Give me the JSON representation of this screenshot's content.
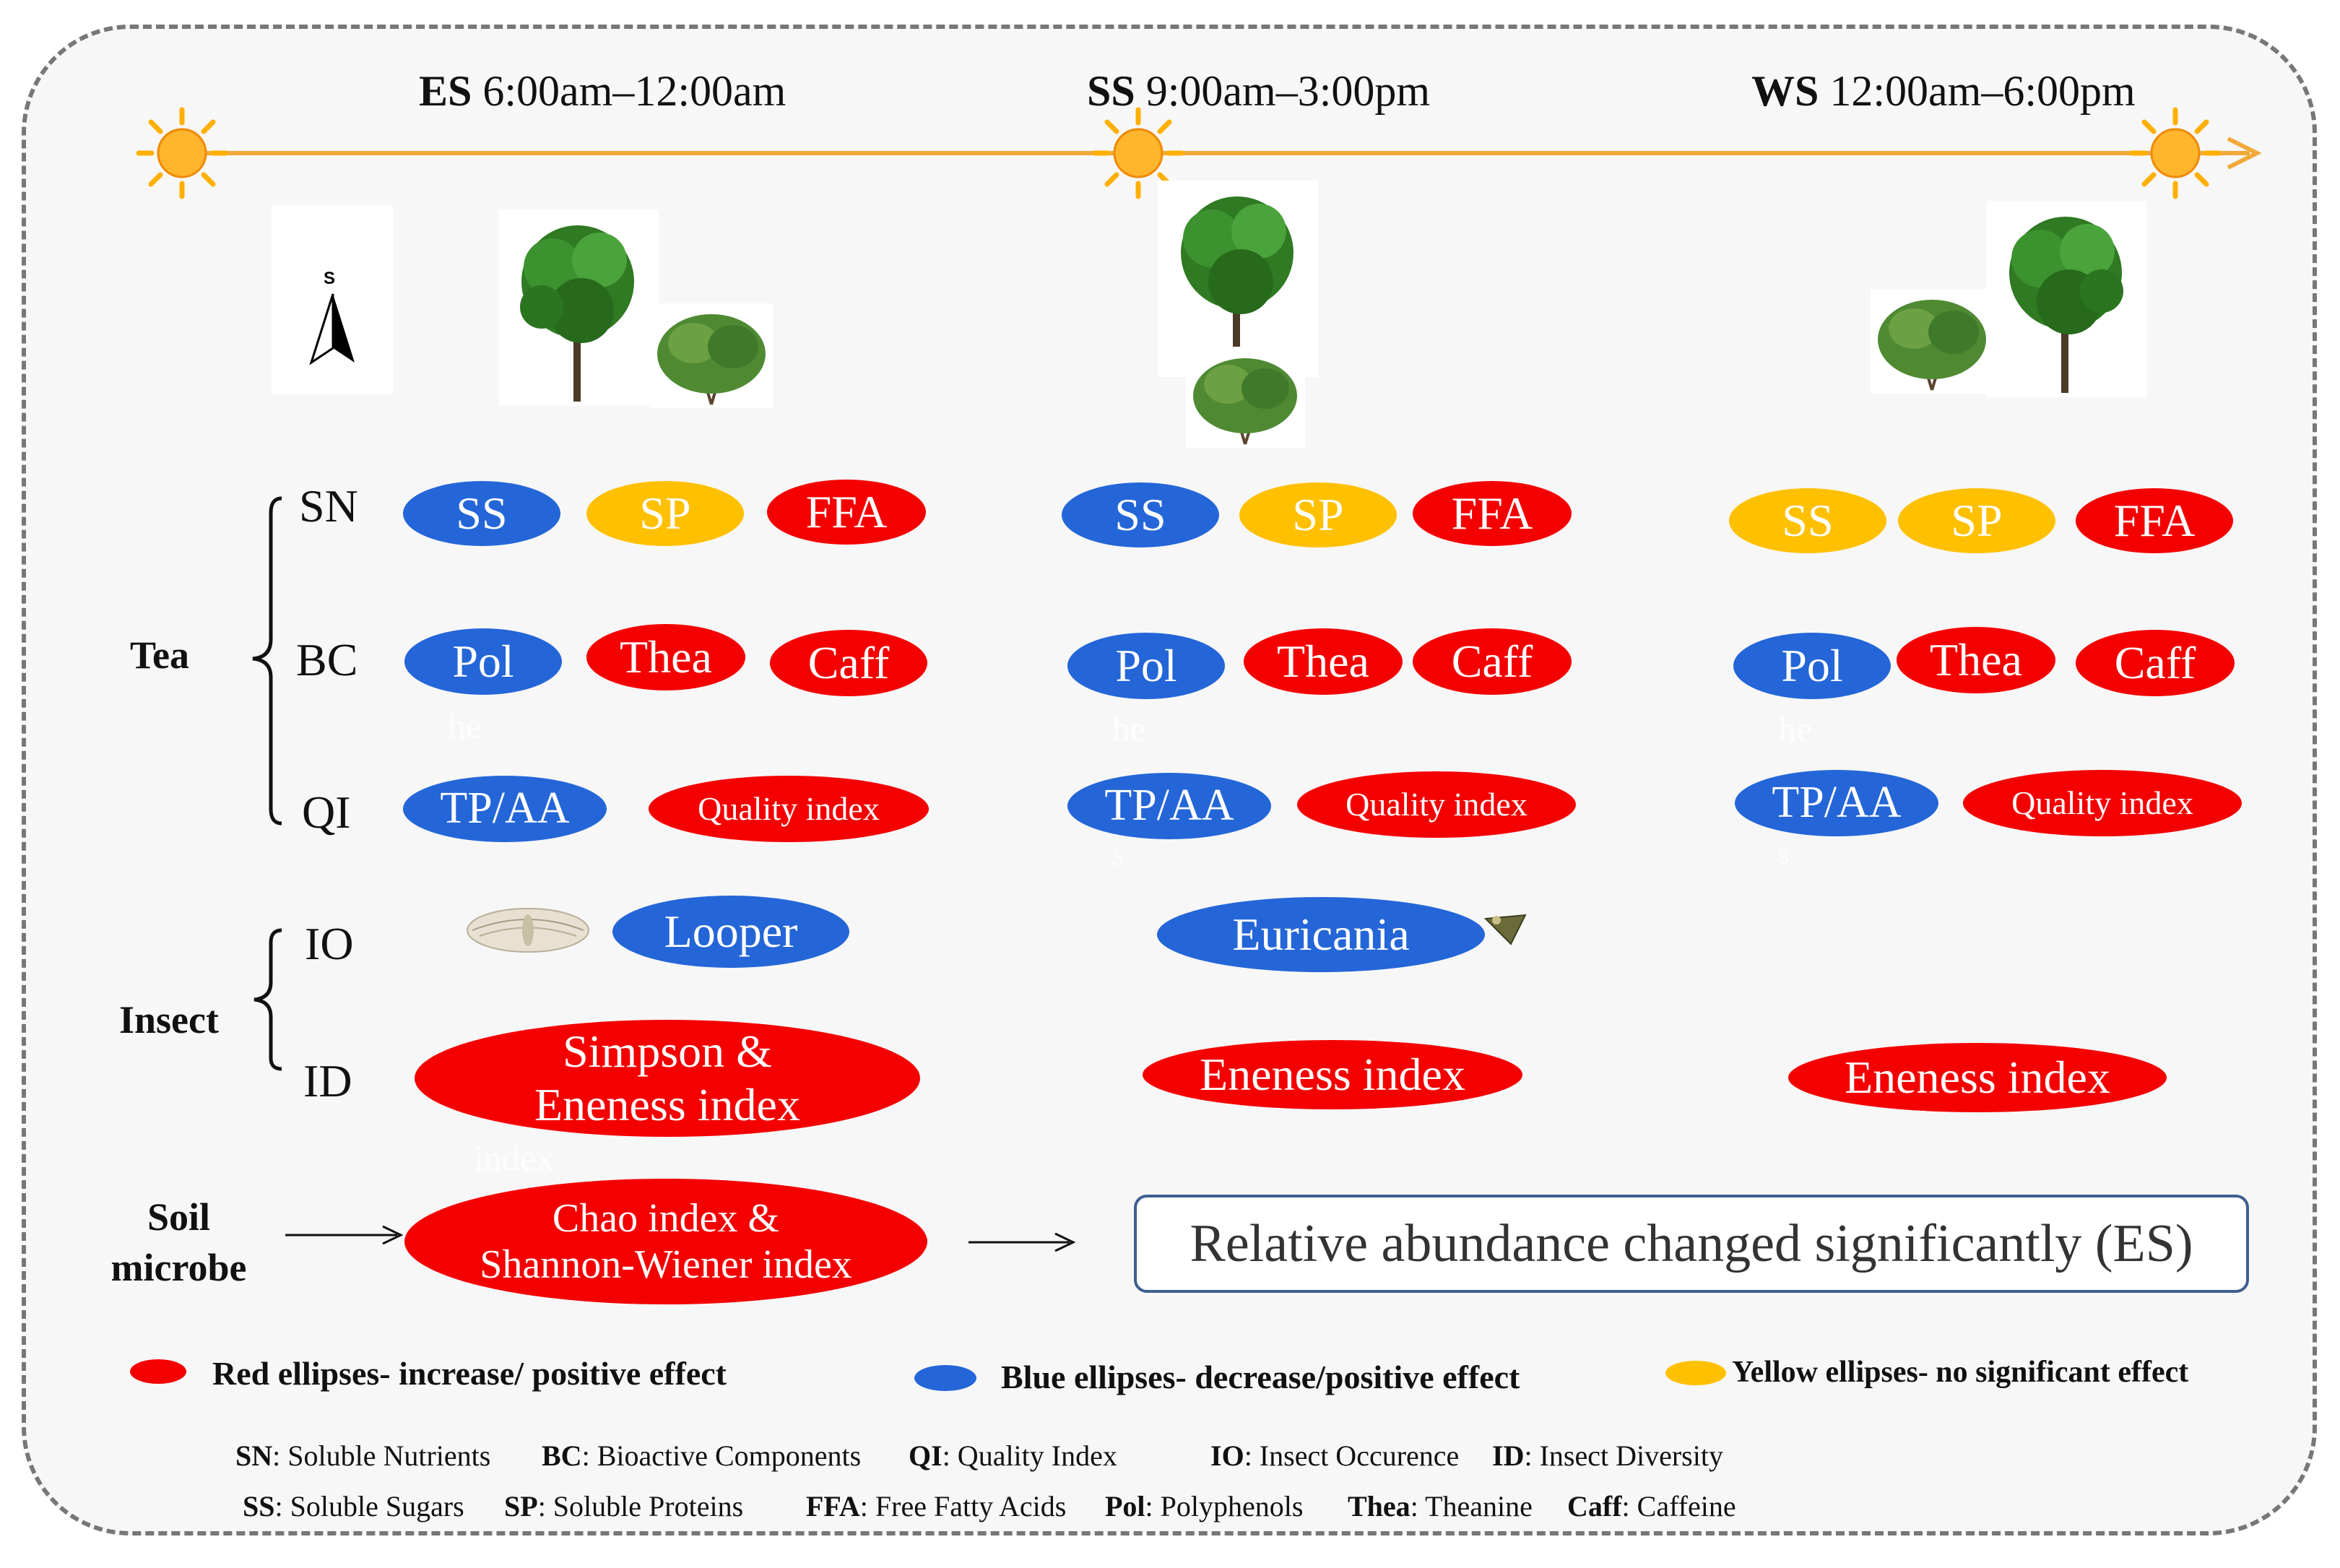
{
  "periods": [
    {
      "code": "ES",
      "time": "6:00am–12:00am"
    },
    {
      "code": "SS",
      "time": "9:00am–3:00pm"
    },
    {
      "code": "WS",
      "time": "12:00am–6:00pm"
    }
  ],
  "compass_label": "S",
  "groups": {
    "tea": "Tea",
    "insect": "Insect",
    "soil_line1": "Soil",
    "soil_line2": "microbe"
  },
  "row_labels": {
    "sn": "SN",
    "bc": "BC",
    "qi": "QI",
    "io": "IO",
    "id": "ID"
  },
  "ellipses": {
    "es": {
      "ss": "SS",
      "sp": "SP",
      "ffa": "FFA",
      "pol": "Pol",
      "thea": "Thea",
      "caff": "Caff",
      "tpaa": "TP/AA",
      "quality": "Quality index",
      "looper": "Looper",
      "id_line1": "Simpson &",
      "id_line2": "Eneness index"
    },
    "ss": {
      "ss": "SS",
      "sp": "SP",
      "ffa": "FFA",
      "pol": "Pol",
      "thea": "Thea",
      "caff": "Caff",
      "tpaa": "TP/AA",
      "quality": "Quality index",
      "euricania": "Euricania",
      "id": "Eneness index"
    },
    "ws": {
      "ss": "SS",
      "sp": "SP",
      "ffa": "FFA",
      "pol": "Pol",
      "thea": "Thea",
      "caff": "Caff",
      "tpaa": "TP/AA",
      "quality": "Quality index",
      "id": "Eneness index"
    },
    "soil_line1": "Chao index  &",
    "soil_line2": "Shannon-Wiener index"
  },
  "ghost_text": {
    "he": "he",
    "s": "s",
    "index": "index"
  },
  "relative_box": "Relative abundance changed significantly (ES)",
  "legend": [
    {
      "color": "#f40000",
      "text": "Red ellipses- increase/ positive effect"
    },
    {
      "color": "#2466d8",
      "text": "Blue ellipses- decrease/positive effect"
    },
    {
      "color": "#ffc000",
      "text": "Yellow ellipses- no significant effect"
    }
  ],
  "abbreviations_line1": [
    {
      "abbr": "SN",
      "full": ": Soluble Nutrients"
    },
    {
      "abbr": "BC",
      "full": ": Bioactive Components"
    },
    {
      "abbr": "QI",
      "full": ": Quality Index"
    },
    {
      "abbr": "IO",
      "full": ": Insect Occurence"
    },
    {
      "abbr": "ID",
      "full": ": Insect Diversity"
    }
  ],
  "abbreviations_line2": [
    {
      "abbr": "SS",
      "full": ": Soluble Sugars"
    },
    {
      "abbr": "SP",
      "full": ": Soluble Proteins"
    },
    {
      "abbr": "FFA",
      "full": ": Free Fatty Acids"
    },
    {
      "abbr": "Pol",
      "full": ": Polyphenols"
    },
    {
      "abbr": "Thea",
      "full": ": Theanine"
    },
    {
      "abbr": "Caff",
      "full": ": Caffeine"
    }
  ],
  "colors": {
    "red": "#f40000",
    "blue": "#2466d8",
    "yellow": "#ffc000",
    "timeline": "#f2a93a"
  }
}
